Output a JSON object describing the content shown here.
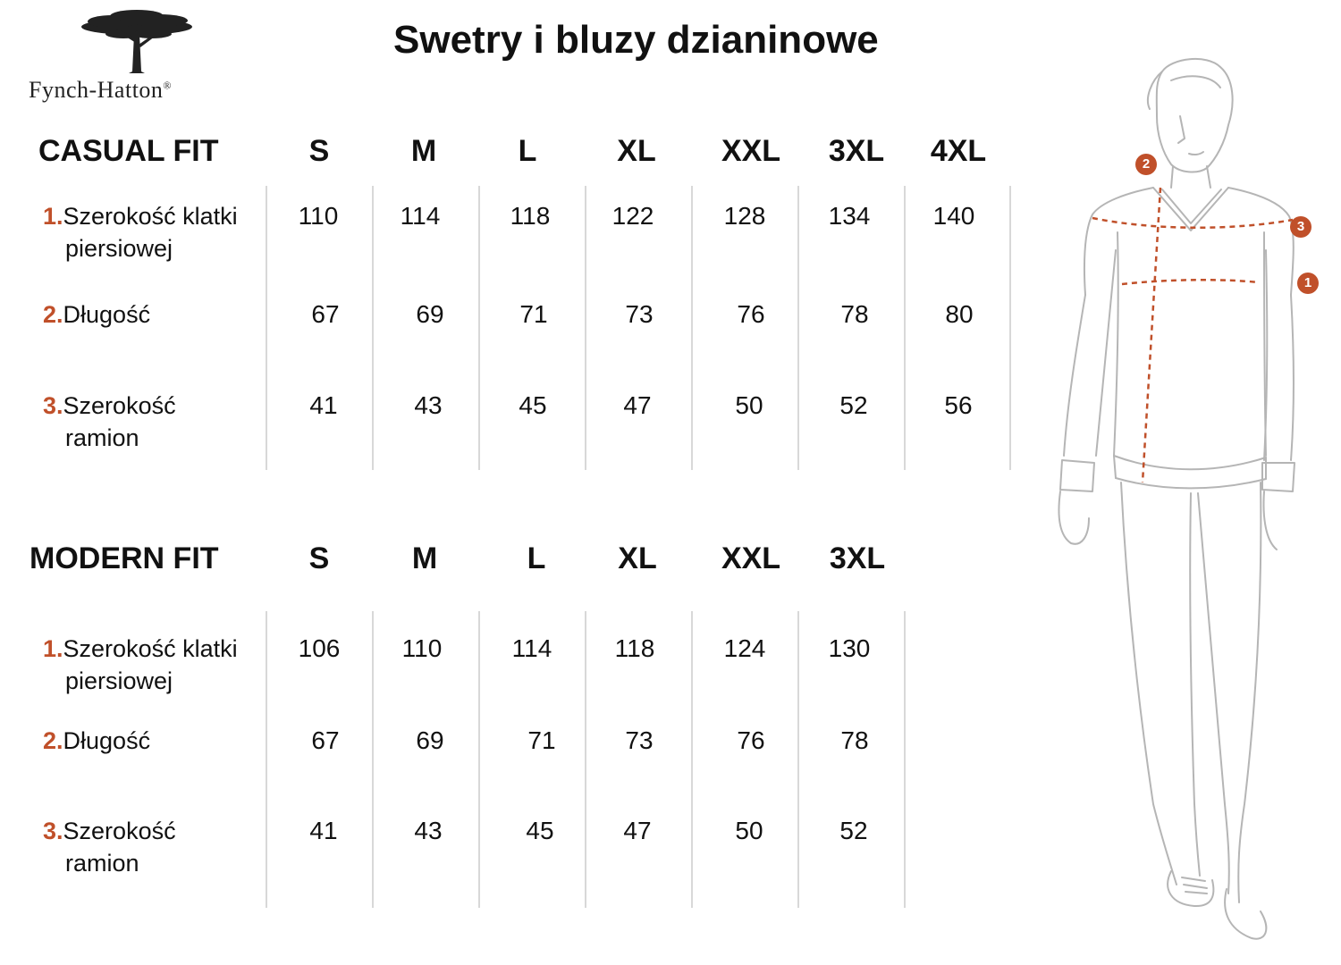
{
  "brand": {
    "name": "Fynch-Hatton",
    "mark": "®",
    "logo_icon": "tree-icon"
  },
  "title": "Swetry i bluzy dzianinowe",
  "casual": {
    "heading": "CASUAL FIT",
    "sizes": [
      "S",
      "M",
      "L",
      "XL",
      "XXL",
      "3XL",
      "4XL"
    ],
    "rows": [
      {
        "num": "1.",
        "label_line1": "Szerokość klatki",
        "label_line2": "piersiowej",
        "values": [
          "110",
          "114",
          "118",
          "122",
          "128",
          "134",
          "140"
        ]
      },
      {
        "num": "2.",
        "label_line1": "Długość",
        "label_line2": "",
        "values": [
          "67",
          "69",
          "71",
          "73",
          "76",
          "78",
          "80"
        ]
      },
      {
        "num": "3.",
        "label_line1": "Szerokość",
        "label_line2": "ramion",
        "values": [
          "41",
          "43",
          "45",
          "47",
          "50",
          "52",
          "56"
        ]
      }
    ]
  },
  "modern": {
    "heading": "MODERN FIT",
    "sizes": [
      "S",
      "M",
      "L",
      "XL",
      "XXL",
      "3XL"
    ],
    "rows": [
      {
        "num": "1.",
        "label_line1": "Szerokość klatki",
        "label_line2": "piersiowej",
        "values": [
          "106",
          "110",
          "114",
          "118",
          "124",
          "130"
        ]
      },
      {
        "num": "2.",
        "label_line1": "Długość",
        "label_line2": "",
        "values": [
          "67",
          "69",
          "71",
          "73",
          "76",
          "78"
        ]
      },
      {
        "num": "3.",
        "label_line1": "Szerokość",
        "label_line2": "ramion",
        "values": [
          "41",
          "43",
          "45",
          "47",
          "50",
          "52"
        ]
      }
    ]
  },
  "figure": {
    "markers": [
      "1",
      "2",
      "3"
    ],
    "accent_color": "#c0502a",
    "icon": "man-sketch-icon"
  }
}
